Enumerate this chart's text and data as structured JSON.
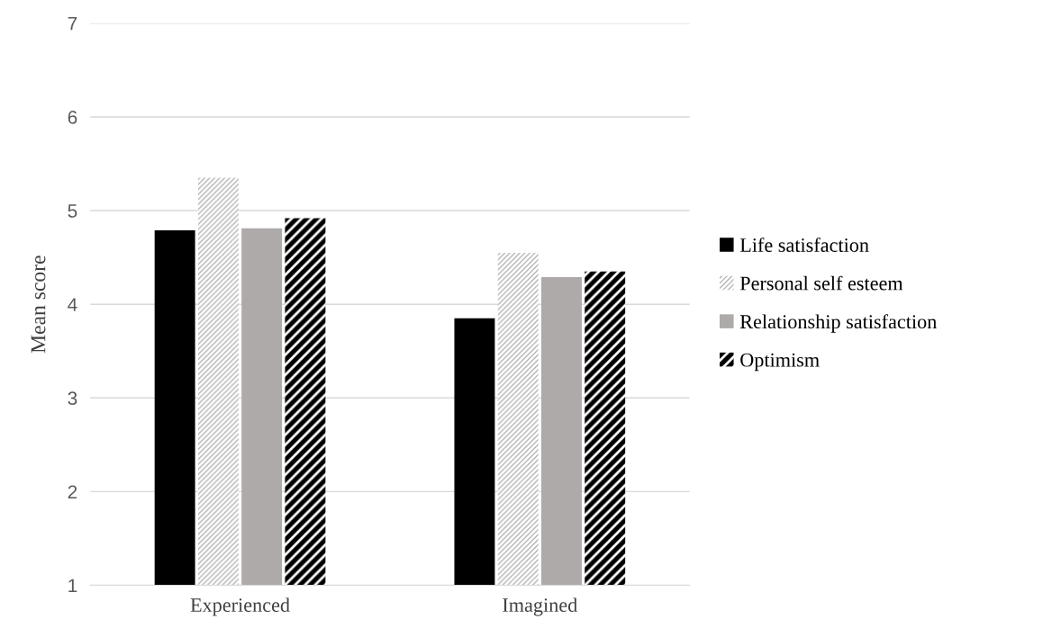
{
  "chart_data": {
    "type": "bar",
    "ylabel": "Mean score",
    "categories": [
      "Experienced",
      "Imagined"
    ],
    "series": [
      {
        "name": "Life satisfaction",
        "color": "#000000",
        "values": [
          4.79,
          3.85
        ]
      },
      {
        "name": "Personal self esteem",
        "color": "#a6a6a6",
        "values": [
          5.35,
          4.55
        ]
      },
      {
        "name": "Relationship satisfaction",
        "color": "#aeaaaa",
        "values": [
          4.81,
          4.29
        ]
      },
      {
        "name": "Optimism",
        "color": "#000000",
        "values": [
          4.92,
          4.35
        ]
      }
    ],
    "ylim": [
      1,
      7
    ],
    "yticks": [
      1,
      2,
      3,
      4,
      5,
      6,
      7
    ],
    "grid": "y",
    "legend": "right"
  }
}
